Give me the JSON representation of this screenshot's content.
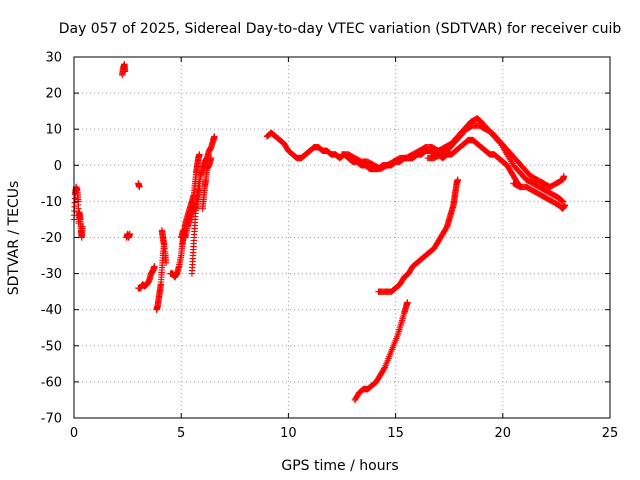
{
  "chart_data": {
    "type": "scatter",
    "title": "Day 057 of 2025, Sidereal Day-to-day VTEC variation (SDTVAR) for receiver cuib",
    "xlabel": "GPS time / hours",
    "ylabel": "SDTVAR / TECUs",
    "xlim": [
      0,
      25
    ],
    "ylim": [
      -70,
      30
    ],
    "xticks": [
      0,
      5,
      10,
      15,
      20,
      25
    ],
    "yticks": [
      -70,
      -60,
      -50,
      -40,
      -30,
      -20,
      -10,
      0,
      10,
      20,
      30
    ],
    "grid": true,
    "marker": "+",
    "color": "#ff0000",
    "series": [
      {
        "name": "SDTVAR",
        "segments": [
          [
            [
              0.0,
              -15
            ],
            [
              0.05,
              -8
            ],
            [
              0.1,
              -6
            ],
            [
              0.15,
              -7
            ],
            [
              0.2,
              -10
            ],
            [
              0.22,
              -16
            ],
            [
              0.25,
              -13
            ],
            [
              0.3,
              -15
            ],
            [
              0.33,
              -18
            ],
            [
              0.36,
              -20
            ],
            [
              0.4,
              -17
            ]
          ],
          [
            [
              2.25,
              25
            ],
            [
              2.3,
              27
            ],
            [
              2.35,
              28
            ],
            [
              2.38,
              26
            ]
          ],
          [
            [
              2.45,
              -20
            ],
            [
              2.5,
              -19
            ],
            [
              2.55,
              -20
            ],
            [
              2.6,
              -19
            ]
          ],
          [
            [
              3.0,
              -5
            ],
            [
              3.05,
              -6
            ]
          ],
          [
            [
              3.0,
              -34
            ],
            [
              3.1,
              -34
            ],
            [
              3.2,
              -33
            ],
            [
              3.3,
              -33.5
            ],
            [
              3.4,
              -33
            ],
            [
              3.5,
              -32
            ],
            [
              3.6,
              -30
            ],
            [
              3.7,
              -29
            ],
            [
              3.75,
              -28
            ]
          ],
          [
            [
              3.85,
              -40
            ],
            [
              3.9,
              -39
            ],
            [
              3.95,
              -37
            ],
            [
              4.0,
              -35
            ],
            [
              4.05,
              -33
            ],
            [
              4.1,
              -29
            ],
            [
              4.15,
              -25
            ],
            [
              4.2,
              -22
            ],
            [
              4.15,
              -20
            ],
            [
              4.1,
              -18
            ],
            [
              4.25,
              -24
            ],
            [
              4.3,
              -27
            ]
          ],
          [
            [
              4.5,
              -30
            ],
            [
              4.6,
              -30
            ],
            [
              4.7,
              -31
            ],
            [
              4.8,
              -30
            ],
            [
              4.9,
              -28
            ],
            [
              5.0,
              -25
            ],
            [
              5.05,
              -22
            ],
            [
              5.1,
              -20
            ],
            [
              5.15,
              -18
            ],
            [
              5.2,
              -16
            ],
            [
              5.3,
              -14
            ],
            [
              5.4,
              -12
            ],
            [
              5.5,
              -10
            ],
            [
              5.6,
              -8
            ],
            [
              5.65,
              -5
            ],
            [
              5.7,
              -2
            ],
            [
              5.75,
              0
            ],
            [
              5.8,
              2
            ],
            [
              5.85,
              3
            ]
          ],
          [
            [
              5.0,
              -20
            ],
            [
              5.1,
              -18
            ],
            [
              5.2,
              -20
            ],
            [
              5.3,
              -17
            ],
            [
              5.4,
              -15
            ],
            [
              5.5,
              -13
            ],
            [
              5.6,
              -11
            ],
            [
              5.7,
              -12
            ],
            [
              5.8,
              -9
            ],
            [
              5.85,
              -6
            ]
          ],
          [
            [
              5.5,
              -30
            ],
            [
              5.55,
              -25
            ],
            [
              5.6,
              -20
            ],
            [
              5.65,
              -15
            ],
            [
              5.7,
              -10
            ],
            [
              5.8,
              -6
            ],
            [
              5.9,
              -3
            ],
            [
              6.0,
              -1
            ],
            [
              6.1,
              1
            ],
            [
              6.2,
              2
            ],
            [
              6.3,
              4
            ],
            [
              6.4,
              5
            ],
            [
              6.5,
              7
            ],
            [
              6.55,
              8
            ]
          ],
          [
            [
              6.0,
              -12
            ],
            [
              6.05,
              -9
            ],
            [
              6.1,
              -6
            ],
            [
              6.15,
              -4
            ],
            [
              6.2,
              -1
            ],
            [
              6.3,
              0
            ],
            [
              6.4,
              2
            ]
          ],
          [
            [
              9.0,
              8
            ],
            [
              9.2,
              9
            ],
            [
              9.4,
              8
            ],
            [
              9.6,
              7
            ],
            [
              9.8,
              6
            ],
            [
              10.0,
              4
            ],
            [
              10.2,
              3
            ],
            [
              10.4,
              2
            ],
            [
              10.6,
              2
            ],
            [
              10.8,
              3
            ],
            [
              11.0,
              4
            ],
            [
              11.2,
              5
            ],
            [
              11.4,
              5
            ],
            [
              11.6,
              4
            ],
            [
              11.8,
              4
            ],
            [
              12.0,
              3
            ],
            [
              12.2,
              3
            ],
            [
              12.4,
              2
            ],
            [
              12.6,
              3
            ],
            [
              12.8,
              2
            ],
            [
              13.0,
              1
            ],
            [
              13.2,
              1
            ],
            [
              13.4,
              0
            ],
            [
              13.6,
              0
            ],
            [
              13.8,
              -1
            ],
            [
              14.0,
              -1
            ],
            [
              14.2,
              -1
            ],
            [
              14.4,
              0
            ],
            [
              14.6,
              0
            ],
            [
              14.8,
              0
            ],
            [
              15.0,
              1
            ],
            [
              15.2,
              1
            ],
            [
              15.4,
              2
            ],
            [
              15.6,
              2
            ],
            [
              15.8,
              2
            ],
            [
              16.0,
              3
            ],
            [
              16.2,
              3
            ],
            [
              16.4,
              4
            ],
            [
              16.6,
              4
            ],
            [
              16.8,
              3
            ],
            [
              17.0,
              3
            ],
            [
              17.2,
              2
            ],
            [
              17.4,
              3
            ],
            [
              17.6,
              3
            ],
            [
              17.8,
              4
            ],
            [
              18.0,
              5
            ],
            [
              18.2,
              6
            ],
            [
              18.4,
              7
            ],
            [
              18.6,
              7
            ],
            [
              18.8,
              6
            ],
            [
              19.0,
              5
            ],
            [
              19.2,
              4
            ],
            [
              19.4,
              3
            ],
            [
              19.6,
              3
            ],
            [
              19.8,
              2
            ],
            [
              20.0,
              1
            ],
            [
              20.2,
              0
            ],
            [
              20.4,
              -2
            ],
            [
              20.6,
              -4
            ],
            [
              20.8,
              -6
            ]
          ],
          [
            [
              12.5,
              3
            ],
            [
              12.8,
              3
            ],
            [
              13.1,
              2
            ],
            [
              13.4,
              1
            ],
            [
              13.7,
              1
            ],
            [
              14.0,
              0
            ],
            [
              14.3,
              -1
            ],
            [
              14.6,
              0
            ],
            [
              14.9,
              1
            ],
            [
              15.2,
              2
            ],
            [
              15.5,
              2
            ],
            [
              15.8,
              3
            ],
            [
              16.1,
              4
            ],
            [
              16.4,
              5
            ],
            [
              16.7,
              5
            ],
            [
              17.0,
              4
            ],
            [
              17.3,
              5
            ],
            [
              17.6,
              6
            ],
            [
              17.9,
              8
            ],
            [
              18.2,
              10
            ],
            [
              18.5,
              12
            ],
            [
              18.8,
              13
            ],
            [
              19.0,
              12
            ],
            [
              19.3,
              10
            ],
            [
              19.6,
              8
            ],
            [
              19.9,
              6
            ],
            [
              20.2,
              3
            ],
            [
              20.5,
              0
            ],
            [
              20.8,
              -2
            ],
            [
              21.1,
              -4
            ],
            [
              21.4,
              -5
            ],
            [
              21.7,
              -6
            ],
            [
              22.0,
              -7
            ],
            [
              22.3,
              -8
            ],
            [
              22.6,
              -9
            ],
            [
              22.8,
              -10
            ]
          ],
          [
            [
              16.5,
              2
            ],
            [
              16.8,
              2
            ],
            [
              17.1,
              3
            ],
            [
              17.4,
              4
            ],
            [
              17.7,
              6
            ],
            [
              18.0,
              8
            ],
            [
              18.3,
              10
            ],
            [
              18.6,
              11
            ],
            [
              18.9,
              11
            ],
            [
              19.2,
              10
            ],
            [
              19.5,
              9
            ],
            [
              19.8,
              7
            ],
            [
              20.1,
              5
            ],
            [
              20.4,
              3
            ],
            [
              20.7,
              1
            ],
            [
              21.0,
              -1
            ],
            [
              21.3,
              -3
            ],
            [
              21.6,
              -4
            ],
            [
              21.9,
              -5
            ],
            [
              22.2,
              -6
            ],
            [
              22.5,
              -5
            ],
            [
              22.8,
              -4
            ],
            [
              22.85,
              -3
            ]
          ],
          [
            [
              20.5,
              -5
            ],
            [
              20.8,
              -6
            ],
            [
              21.1,
              -6
            ],
            [
              21.4,
              -7
            ],
            [
              21.7,
              -8
            ],
            [
              22.0,
              -9
            ],
            [
              22.3,
              -10
            ],
            [
              22.6,
              -11
            ],
            [
              22.8,
              -12
            ],
            [
              22.9,
              -11
            ]
          ],
          [
            [
              14.2,
              -35
            ],
            [
              14.5,
              -35
            ],
            [
              14.8,
              -35
            ],
            [
              15.0,
              -34
            ],
            [
              15.2,
              -33
            ],
            [
              15.4,
              -31
            ],
            [
              15.6,
              -30
            ],
            [
              15.8,
              -28
            ],
            [
              16.0,
              -27
            ],
            [
              16.2,
              -26
            ],
            [
              16.4,
              -25
            ],
            [
              16.6,
              -24
            ],
            [
              16.8,
              -23
            ],
            [
              17.0,
              -21
            ],
            [
              17.2,
              -19
            ],
            [
              17.4,
              -17
            ],
            [
              17.5,
              -15
            ],
            [
              17.6,
              -13
            ],
            [
              17.7,
              -11
            ],
            [
              17.75,
              -9
            ],
            [
              17.8,
              -7
            ],
            [
              17.85,
              -5
            ],
            [
              17.9,
              -4
            ]
          ],
          [
            [
              13.1,
              -65
            ],
            [
              13.3,
              -63
            ],
            [
              13.5,
              -62
            ],
            [
              13.7,
              -62
            ],
            [
              13.9,
              -61
            ],
            [
              14.1,
              -60
            ],
            [
              14.3,
              -58
            ],
            [
              14.5,
              -56
            ],
            [
              14.7,
              -53
            ],
            [
              14.9,
              -50
            ],
            [
              15.1,
              -47
            ],
            [
              15.25,
              -44
            ],
            [
              15.4,
              -41
            ],
            [
              15.5,
              -39
            ],
            [
              15.55,
              -38
            ]
          ]
        ]
      }
    ]
  }
}
